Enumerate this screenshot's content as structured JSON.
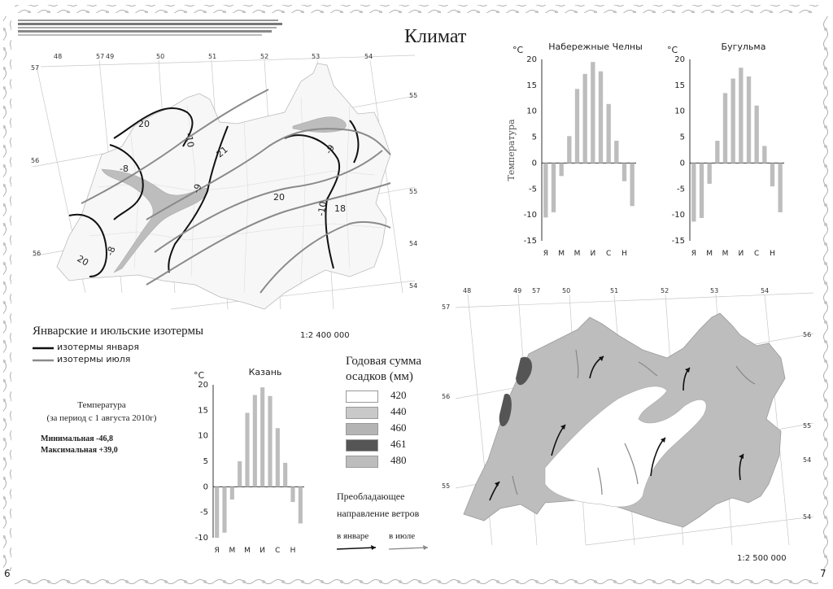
{
  "page": {
    "title": "Климат",
    "page_left": "6",
    "page_right": "7"
  },
  "isotherms_map": {
    "scale": "1:2 400 000",
    "meridians": [
      "48",
      "57",
      "49",
      "50",
      "51",
      "52",
      "53",
      "54"
    ],
    "parallels": [
      "57",
      "56",
      "55",
      "56",
      "55",
      "54",
      "54"
    ],
    "isotherm_labels": [
      "20",
      "-10",
      "-8",
      "21",
      "-9",
      "-9",
      "20",
      "-10",
      "18",
      "-8",
      "20"
    ]
  },
  "isotherm_legend": {
    "title": "Январские и июльские изотермы",
    "january": "изотермы января",
    "july": "изотермы июля",
    "january_color": "#111111",
    "july_color": "#8a8a8a"
  },
  "temperature_note": {
    "title": "Температура",
    "period": "(за период с 1 августа 2010г)",
    "min": "Минимальная -46,8",
    "max": "Максимальная +39,0"
  },
  "precip_legend": {
    "title_line1": "Годовая сумма",
    "title_line2": "осадков (мм)",
    "items": [
      {
        "label": "420",
        "color": "#ffffff"
      },
      {
        "label": "440",
        "color": "#c9c9c9"
      },
      {
        "label": "460",
        "color": "#b4b4b4"
      },
      {
        "label": "461",
        "color": "#555555"
      },
      {
        "label": "480",
        "color": "#bdbdbd"
      }
    ]
  },
  "winds_legend": {
    "title_line1": "Преобладающее",
    "title_line2": "направление ветров",
    "january": "в январе",
    "july": "в июле"
  },
  "precip_map": {
    "scale": "1:2 500 000",
    "meridians": [
      "48",
      "49",
      "57",
      "50",
      "51",
      "52",
      "53",
      "54"
    ],
    "parallels": [
      "57",
      "56",
      "56",
      "55",
      "55",
      "54",
      "54"
    ]
  },
  "chart_data": [
    {
      "type": "bar",
      "title": "Набережные Челны",
      "unit": "°C",
      "ylabel": "Температура",
      "categories": [
        "Я",
        "",
        "М",
        "",
        "М",
        "",
        "И",
        "",
        "С",
        "",
        "Н",
        ""
      ],
      "values": [
        -10.5,
        -9.5,
        -2.5,
        5.2,
        14.3,
        17.2,
        19.5,
        17.7,
        11.4,
        4.3,
        -3.5,
        -8.3
      ],
      "ylim": [
        -15,
        20
      ],
      "yticks": [
        20,
        15,
        10,
        5,
        0,
        -5,
        -10,
        -15
      ],
      "color": "#bdbdbd"
    },
    {
      "type": "bar",
      "title": "Бугульма",
      "unit": "°C",
      "categories": [
        "Я",
        "",
        "М",
        "",
        "М",
        "",
        "И",
        "",
        "С",
        "",
        "Н",
        ""
      ],
      "values": [
        -11.3,
        -10.6,
        -4.0,
        4.3,
        13.5,
        16.3,
        18.4,
        16.7,
        11.1,
        3.3,
        -4.5,
        -9.5
      ],
      "ylim": [
        -15,
        20
      ],
      "yticks": [
        20,
        15,
        10,
        5,
        0,
        -5,
        -10,
        -15
      ],
      "color": "#bdbdbd"
    },
    {
      "type": "bar",
      "title": "Казань",
      "unit": "°C",
      "categories": [
        "Я",
        "",
        "М",
        "",
        "М",
        "",
        "И",
        "",
        "С",
        "",
        "Н",
        ""
      ],
      "values": [
        -10.0,
        -9.0,
        -2.5,
        5.0,
        14.5,
        18.0,
        19.5,
        17.8,
        11.5,
        4.7,
        -3.0,
        -7.2
      ],
      "ylim": [
        -10,
        20
      ],
      "yticks": [
        20,
        15,
        10,
        5,
        0,
        -5,
        -10
      ],
      "color": "#bdbdbd"
    }
  ]
}
